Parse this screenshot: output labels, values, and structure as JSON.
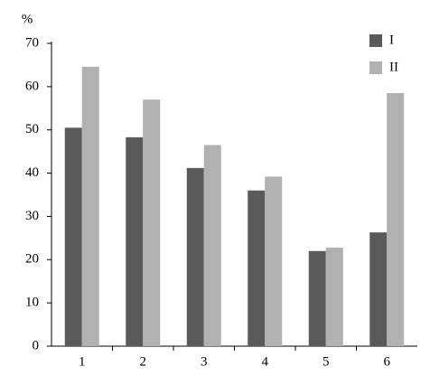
{
  "chart_data": {
    "type": "bar",
    "y_label": "%",
    "categories": [
      "1",
      "2",
      "3",
      "4",
      "5",
      "6"
    ],
    "series": [
      {
        "name": "I",
        "color": "#5a5a5a",
        "values": [
          50.5,
          48.3,
          41.2,
          36,
          22,
          26.3
        ]
      },
      {
        "name": "II",
        "color": "#b1b1b1",
        "values": [
          64.6,
          57,
          46.5,
          39.2,
          22.8,
          58.5
        ]
      }
    ],
    "ylim": [
      0,
      70
    ],
    "yticks": [
      0,
      10,
      20,
      30,
      40,
      50,
      60,
      70
    ],
    "grid": false,
    "legend": "upper right"
  }
}
